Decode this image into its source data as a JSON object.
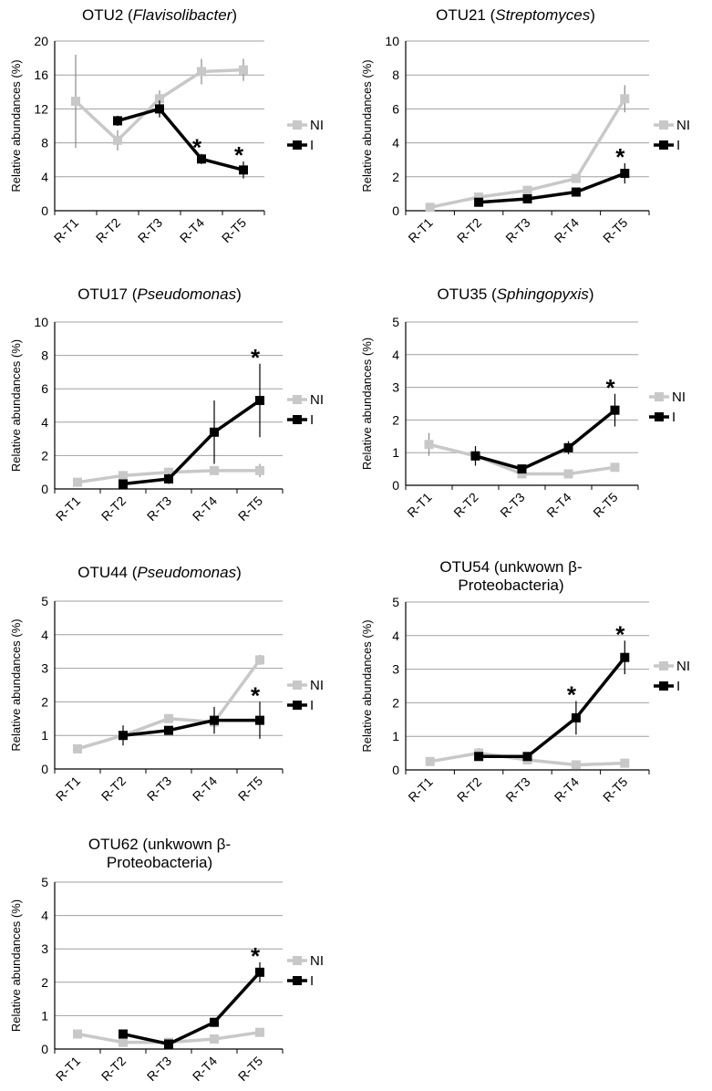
{
  "y_label": "Relative abundances (%)",
  "legend": [
    {
      "key": "NI",
      "label": "NI",
      "color": "#c8c8c8"
    },
    {
      "key": "I",
      "label": "I",
      "color": "#000000"
    }
  ],
  "colors": {
    "NI": "#c8c8c8",
    "I": "#000000",
    "grid": "#a0a0a0"
  },
  "chart_data": [
    {
      "type": "line",
      "title_prefix": "OTU2 (",
      "title_italic": "Flavisolibacter",
      "title_suffix": ")",
      "title_lines": [],
      "categories": [
        "R-T1",
        "R-T2",
        "R-T3",
        "R-T4",
        "R-T5"
      ],
      "ylabel": "Relative abundances (%)",
      "ylim": [
        0,
        20
      ],
      "yticks": [
        0,
        4,
        8,
        12,
        16,
        20
      ],
      "grid": true,
      "legend_position": "right",
      "series": [
        {
          "name": "NI",
          "values": [
            12.9,
            8.3,
            13.2,
            16.4,
            16.6
          ],
          "errors": [
            5.5,
            1.2,
            1.0,
            1.5,
            1.3
          ]
        },
        {
          "name": "I",
          "values": [
            null,
            10.6,
            12.0,
            6.1,
            4.8
          ],
          "errors": [
            null,
            0.6,
            1.0,
            0.6,
            1.0
          ]
        }
      ],
      "significant": [
        "R-T4",
        "R-T5"
      ]
    },
    {
      "type": "line",
      "title_prefix": "OTU21 (",
      "title_italic": "Streptomyces",
      "title_suffix": ")",
      "title_lines": [],
      "categories": [
        "R-T1",
        "R-T2",
        "R-T3",
        "R-T4",
        "R-T5"
      ],
      "ylabel": "Relative abundances (%)",
      "ylim": [
        0,
        10
      ],
      "yticks": [
        0,
        2,
        4,
        6,
        8,
        10
      ],
      "grid": true,
      "legend_position": "right",
      "series": [
        {
          "name": "NI",
          "values": [
            0.2,
            0.8,
            1.2,
            1.9,
            6.6
          ],
          "errors": [
            0.1,
            0.1,
            0.15,
            0.2,
            0.8
          ]
        },
        {
          "name": "I",
          "values": [
            null,
            0.5,
            0.7,
            1.1,
            2.2
          ],
          "errors": [
            null,
            0.1,
            0.1,
            0.15,
            0.6
          ]
        }
      ],
      "significant": [
        "R-T5"
      ]
    },
    {
      "type": "line",
      "title_prefix": "OTU17 (",
      "title_italic": "Pseudomonas",
      "title_suffix": ")",
      "title_lines": [],
      "categories": [
        "R-T1",
        "R-T2",
        "R-T3",
        "R-T4",
        "R-T5"
      ],
      "ylabel": "Relative abundances (%)",
      "ylim": [
        0,
        10
      ],
      "yticks": [
        0,
        2,
        4,
        6,
        8,
        10
      ],
      "grid": true,
      "legend_position": "right",
      "series": [
        {
          "name": "NI",
          "values": [
            0.4,
            0.8,
            1.0,
            1.1,
            1.1
          ],
          "errors": [
            0.1,
            0.1,
            0.2,
            0.2,
            0.4
          ]
        },
        {
          "name": "I",
          "values": [
            null,
            0.3,
            0.6,
            3.4,
            5.3
          ],
          "errors": [
            null,
            0.1,
            0.3,
            1.9,
            2.2
          ]
        }
      ],
      "significant": [
        "R-T5"
      ]
    },
    {
      "type": "line",
      "title_prefix": "OTU35 (",
      "title_italic": "Sphingopyxis",
      "title_suffix": ")",
      "title_lines": [],
      "categories": [
        "R-T1",
        "R-T2",
        "R-T3",
        "R-T4",
        "R-T5"
      ],
      "ylabel": "Relative abundances (%)",
      "ylim": [
        0,
        5
      ],
      "yticks": [
        0,
        1,
        2,
        3,
        4,
        5
      ],
      "grid": true,
      "legend_position": "right",
      "series": [
        {
          "name": "NI",
          "values": [
            1.25,
            0.9,
            0.35,
            0.35,
            0.55
          ],
          "errors": [
            0.35,
            0.15,
            0.1,
            0.1,
            0.1
          ]
        },
        {
          "name": "I",
          "values": [
            null,
            0.9,
            0.5,
            1.15,
            2.3
          ],
          "errors": [
            null,
            0.3,
            0.1,
            0.2,
            0.5
          ]
        }
      ],
      "significant": [
        "R-T5"
      ]
    },
    {
      "type": "line",
      "title_prefix": "OTU44 (",
      "title_italic": "Pseudomonas",
      "title_suffix": ")",
      "title_lines": [],
      "categories": [
        "R-T1",
        "R-T2",
        "R-T3",
        "R-T4",
        "R-T5"
      ],
      "ylabel": "Relative abundances (%)",
      "ylim": [
        0,
        5
      ],
      "yticks": [
        0,
        1,
        2,
        3,
        4,
        5
      ],
      "grid": true,
      "legend_position": "right",
      "series": [
        {
          "name": "NI",
          "values": [
            0.6,
            1.0,
            1.5,
            1.4,
            3.25
          ],
          "errors": [
            0.1,
            0.1,
            0.1,
            0.2,
            0.15
          ]
        },
        {
          "name": "I",
          "values": [
            null,
            1.0,
            1.15,
            1.45,
            1.45
          ],
          "errors": [
            null,
            0.3,
            0.1,
            0.4,
            0.55
          ]
        }
      ],
      "significant": [
        "R-T5"
      ]
    },
    {
      "type": "line",
      "title_prefix": "",
      "title_italic": "",
      "title_suffix": "",
      "title_lines": [
        "OTU54 (unkwown β-",
        "Proteobacteria)"
      ],
      "categories": [
        "R-T1",
        "R-T2",
        "R-T3",
        "R-T4",
        "R-T5"
      ],
      "ylabel": "Relative abundances (%)",
      "ylim": [
        0,
        5
      ],
      "yticks": [
        0,
        1,
        2,
        3,
        4,
        5
      ],
      "grid": true,
      "legend_position": "right",
      "series": [
        {
          "name": "NI",
          "values": [
            0.25,
            0.5,
            0.3,
            0.15,
            0.2
          ],
          "errors": [
            0.05,
            0.15,
            0.05,
            0.05,
            0.05
          ]
        },
        {
          "name": "I",
          "values": [
            null,
            0.4,
            0.4,
            1.55,
            3.35
          ],
          "errors": [
            null,
            0.1,
            0.1,
            0.5,
            0.5
          ]
        }
      ],
      "significant": [
        "R-T4",
        "R-T5"
      ]
    },
    {
      "type": "line",
      "title_prefix": "",
      "title_italic": "",
      "title_suffix": "",
      "title_lines": [
        "OTU62 (unkwown β-",
        "Proteobacteria)"
      ],
      "categories": [
        "R-T1",
        "R-T2",
        "R-T3",
        "R-T4",
        "R-T5"
      ],
      "ylabel": "Relative abundances (%)",
      "ylim": [
        0,
        5
      ],
      "yticks": [
        0,
        1,
        2,
        3,
        4,
        5
      ],
      "grid": true,
      "legend_position": "right",
      "series": [
        {
          "name": "NI",
          "values": [
            0.45,
            0.2,
            0.2,
            0.3,
            0.5
          ],
          "errors": [
            0.05,
            0.05,
            0.05,
            0.05,
            0.05
          ]
        },
        {
          "name": "I",
          "values": [
            null,
            0.45,
            0.15,
            0.8,
            2.3
          ],
          "errors": [
            null,
            0.1,
            0.1,
            0.1,
            0.3
          ]
        }
      ],
      "significant": [
        "R-T5"
      ]
    }
  ]
}
